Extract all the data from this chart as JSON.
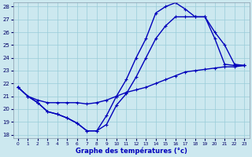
{
  "xlabel": "Graphe des températures (°c)",
  "bg_color": "#cce8ef",
  "grid_color": "#99ccd9",
  "line_color": "#0000bb",
  "xlim": [
    0,
    23
  ],
  "ylim": [
    18,
    28
  ],
  "xticks": [
    0,
    1,
    2,
    3,
    4,
    5,
    6,
    7,
    8,
    9,
    10,
    11,
    12,
    13,
    14,
    15,
    16,
    17,
    18,
    19,
    20,
    21,
    22,
    23
  ],
  "yticks": [
    18,
    19,
    20,
    21,
    22,
    23,
    24,
    25,
    26,
    27,
    28
  ],
  "line1_x": [
    0,
    1,
    2,
    3,
    4,
    5,
    6,
    7,
    8,
    9,
    10,
    11,
    12,
    13,
    14,
    15,
    16,
    17,
    18,
    19,
    20,
    21,
    22,
    23
  ],
  "line1_y": [
    21.7,
    21.0,
    20.7,
    20.5,
    20.5,
    20.5,
    20.5,
    20.4,
    20.5,
    20.7,
    21.0,
    21.3,
    21.5,
    21.7,
    22.0,
    22.3,
    22.6,
    22.9,
    23.0,
    23.1,
    23.2,
    23.3,
    23.3,
    23.4
  ],
  "line2_x": [
    0,
    1,
    2,
    3,
    4,
    5,
    6,
    7,
    8,
    9,
    10,
    11,
    12,
    13,
    14,
    15,
    16,
    17,
    18,
    19,
    20,
    21,
    22,
    23
  ],
  "line2_y": [
    21.7,
    21.0,
    20.5,
    19.8,
    19.6,
    19.3,
    18.9,
    18.3,
    18.3,
    18.8,
    20.3,
    21.2,
    22.5,
    24.0,
    25.5,
    26.5,
    27.2,
    27.2,
    27.2,
    27.2,
    26.0,
    25.0,
    23.5,
    23.4
  ],
  "line3_x": [
    0,
    1,
    2,
    3,
    4,
    5,
    6,
    7,
    8,
    9,
    10,
    11,
    12,
    13,
    14,
    15,
    16,
    17,
    18,
    19,
    20,
    21,
    22,
    23
  ],
  "line3_y": [
    21.7,
    21.0,
    20.5,
    19.8,
    19.6,
    19.3,
    18.9,
    18.3,
    18.3,
    19.5,
    21.0,
    22.3,
    24.0,
    25.5,
    27.5,
    28.0,
    28.3,
    27.8,
    27.2,
    27.2,
    25.5,
    23.5,
    23.4,
    23.4
  ]
}
